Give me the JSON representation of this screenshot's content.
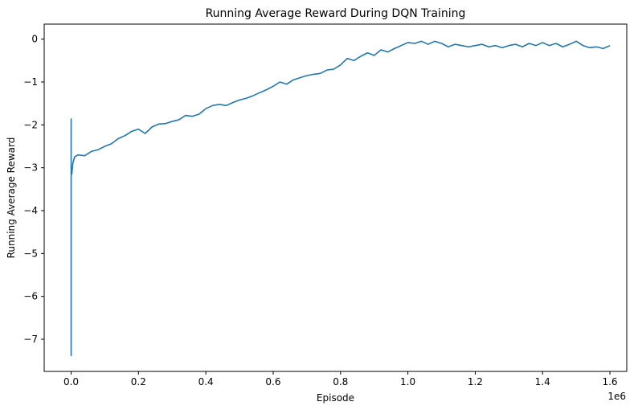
{
  "chart_data": {
    "type": "line",
    "title": "Running Average Reward During DQN Training",
    "xlabel": "Episode",
    "ylabel": "Running Average Reward",
    "x_scale_label": "1e6",
    "xlim": [
      -0.08,
      1.65
    ],
    "ylim": [
      -7.75,
      0.35
    ],
    "x_ticks": [
      0.0,
      0.2,
      0.4,
      0.6,
      0.8,
      1.0,
      1.2,
      1.4,
      1.6
    ],
    "x_tick_labels": [
      "0.0",
      "0.2",
      "0.4",
      "0.6",
      "0.8",
      "1.0",
      "1.2",
      "1.4",
      "1.6"
    ],
    "y_ticks": [
      0,
      -1,
      -2,
      -3,
      -4,
      -5,
      -6,
      -7
    ],
    "y_tick_labels": [
      "0",
      "−1",
      "−2",
      "−3",
      "−4",
      "−5",
      "−6",
      "−7"
    ],
    "grid": false,
    "line_color": "#1f77b4",
    "series": [
      {
        "x": [
          0.0,
          0.0,
          0.0,
          0.002,
          0.005,
          0.01,
          0.02,
          0.04,
          0.06,
          0.08,
          0.1,
          0.12,
          0.14,
          0.16,
          0.18,
          0.2,
          0.22,
          0.24,
          0.26,
          0.28,
          0.3,
          0.32,
          0.34,
          0.36,
          0.38,
          0.4,
          0.42,
          0.44,
          0.46,
          0.48,
          0.5,
          0.52,
          0.54,
          0.56,
          0.58,
          0.6,
          0.62,
          0.64,
          0.66,
          0.68,
          0.7,
          0.72,
          0.74,
          0.76,
          0.78,
          0.8,
          0.82,
          0.84,
          0.86,
          0.88,
          0.9,
          0.92,
          0.94,
          0.96,
          0.98,
          1.0,
          1.02,
          1.04,
          1.06,
          1.08,
          1.1,
          1.12,
          1.14,
          1.16,
          1.18,
          1.2,
          1.22,
          1.24,
          1.26,
          1.28,
          1.3,
          1.32,
          1.34,
          1.36,
          1.38,
          1.4,
          1.42,
          1.44,
          1.46,
          1.48,
          1.5,
          1.52,
          1.54,
          1.56,
          1.58,
          1.6
        ],
        "y": [
          -1.85,
          -7.38,
          -3.0,
          -3.15,
          -2.9,
          -2.75,
          -2.7,
          -2.72,
          -2.62,
          -2.58,
          -2.5,
          -2.44,
          -2.32,
          -2.25,
          -2.15,
          -2.1,
          -2.2,
          -2.05,
          -1.98,
          -1.97,
          -1.92,
          -1.88,
          -1.78,
          -1.8,
          -1.75,
          -1.62,
          -1.55,
          -1.52,
          -1.55,
          -1.48,
          -1.42,
          -1.38,
          -1.32,
          -1.25,
          -1.18,
          -1.1,
          -1.0,
          -1.05,
          -0.95,
          -0.9,
          -0.85,
          -0.82,
          -0.8,
          -0.72,
          -0.7,
          -0.6,
          -0.45,
          -0.5,
          -0.4,
          -0.32,
          -0.38,
          -0.25,
          -0.3,
          -0.22,
          -0.15,
          -0.08,
          -0.1,
          -0.05,
          -0.12,
          -0.05,
          -0.1,
          -0.18,
          -0.12,
          -0.15,
          -0.18,
          -0.15,
          -0.12,
          -0.18,
          -0.15,
          -0.2,
          -0.15,
          -0.12,
          -0.18,
          -0.1,
          -0.15,
          -0.08,
          -0.15,
          -0.1,
          -0.18,
          -0.12,
          -0.05,
          -0.15,
          -0.2,
          -0.18,
          -0.22,
          -0.15
        ]
      }
    ]
  }
}
